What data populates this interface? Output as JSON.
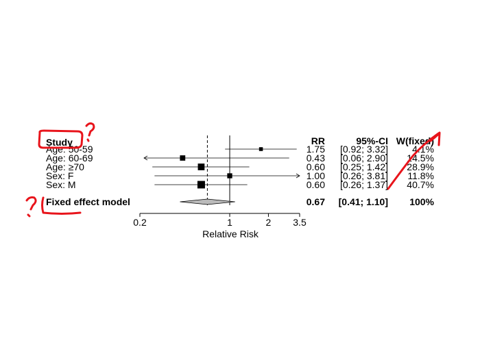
{
  "chart_data": {
    "type": "forest",
    "headers": {
      "study": "Study",
      "rr": "RR",
      "ci": "95%-CI",
      "weight": "W(fixed)"
    },
    "studies": [
      {
        "label": "Age: 50-59",
        "rr": 1.75,
        "lower": 0.92,
        "upper": 3.32,
        "rr_text": "1.75",
        "ci_text": "[0.92; 3.32]",
        "weight": 4.1,
        "weight_text": "4.1%"
      },
      {
        "label": "Age: 60-69",
        "rr": 0.43,
        "lower": 0.06,
        "upper": 2.9,
        "rr_text": "0.43",
        "ci_text": "[0.06; 2.90]",
        "weight": 14.5,
        "weight_text": "14.5%"
      },
      {
        "label": "Age: ≥70",
        "rr": 0.6,
        "lower": 0.25,
        "upper": 1.42,
        "rr_text": "0.60",
        "ci_text": "[0.25; 1.42]",
        "weight": 28.9,
        "weight_text": "28.9%"
      },
      {
        "label": "Sex: F",
        "rr": 1.0,
        "lower": 0.26,
        "upper": 3.81,
        "rr_text": "1.00",
        "ci_text": "[0.26; 3.81]",
        "weight": 11.8,
        "weight_text": "11.8%"
      },
      {
        "label": "Sex: M",
        "rr": 0.6,
        "lower": 0.26,
        "upper": 1.37,
        "rr_text": "0.60",
        "ci_text": "[0.26; 1.37]",
        "weight": 40.7,
        "weight_text": "40.7%"
      }
    ],
    "pooled": {
      "label": "Fixed effect model",
      "rr": 0.67,
      "lower": 0.41,
      "upper": 1.1,
      "rr_text": "0.67",
      "ci_text": "[0.41; 1.10]",
      "weight_text": "100%"
    },
    "x_axis": {
      "scale": "log",
      "ticks": [
        0.2,
        1,
        2,
        3.5
      ],
      "tick_labels": [
        "0.2",
        "1",
        "2",
        "3.5"
      ],
      "label": "Relative Risk",
      "range": [
        0.2,
        3.5
      ]
    },
    "reference_line": 1,
    "pooled_line": 0.67
  },
  "annotations": {
    "color": "#e8141b",
    "items": [
      "box-around-study-header",
      "question-mark-near-study",
      "question-mark-near-fixed-effect",
      "underline-fixed-effect-model",
      "strike-through-weight-column"
    ]
  }
}
